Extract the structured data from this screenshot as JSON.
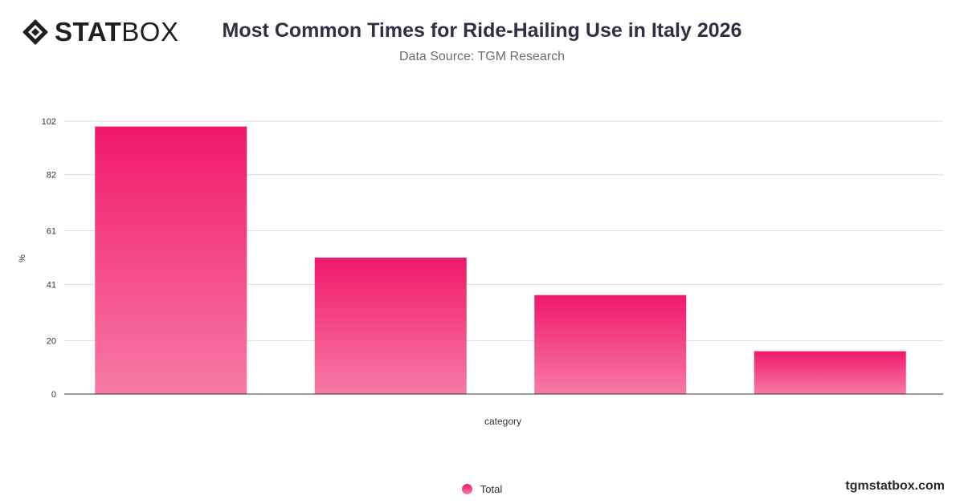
{
  "brand": {
    "logo_bold": "STAT",
    "logo_thin": "BOX",
    "url": "tgmstatbox.com"
  },
  "colors": {
    "bar_top": "#f0186a",
    "bar_bottom": "#f77aa6",
    "grid": "#dcdcdc",
    "axis": "#333333",
    "title": "#2f2f45"
  },
  "chart_data": {
    "type": "bar",
    "title": "Most Common Times for Ride-Hailing Use in Italy 2026",
    "subtitle": "Data Source: TGM Research",
    "xlabel": "category",
    "ylabel": "%",
    "categories": [
      "",
      "",
      "",
      ""
    ],
    "series": [
      {
        "name": "Total",
        "values": [
          100,
          51,
          37,
          16
        ]
      }
    ],
    "yticks": [
      0,
      20,
      41,
      61,
      82,
      102
    ],
    "ylim": [
      0,
      102
    ],
    "grid": true,
    "legend": "bottom-center"
  }
}
